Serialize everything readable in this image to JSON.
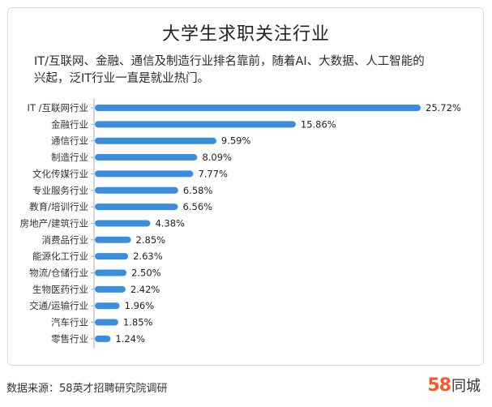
{
  "header": {
    "title": "大学生求职关注行业",
    "subtitle_line1": "IT/互联网、金融、通信及制造行业排名靠前，随着AI、大数据、人工智能的",
    "subtitle_line2": "兴起，泛IT行业一直是就业热门。"
  },
  "footer": {
    "source": "数据来源：58英才招聘研究院调研",
    "brand_number": "58",
    "brand_text": "同城"
  },
  "colors": {
    "bar": "#3b8ede",
    "axis": "#a9adb3",
    "brand": "#ff552e"
  },
  "chart_data": {
    "type": "bar",
    "orientation": "horizontal",
    "categories": [
      "IT /互联网行业",
      "金融行业",
      "通信行业",
      "制造行业",
      "文化传媒行业",
      "专业服务行业",
      "教育/培训行业",
      "房地产/建筑行业",
      "消费品行业",
      "能源化工行业",
      "物流/仓储行业",
      "生物医药行业",
      "交通/运输行业",
      "汽车行业",
      "零售行业"
    ],
    "values": [
      25.72,
      15.86,
      9.59,
      8.09,
      7.77,
      6.58,
      6.56,
      4.38,
      2.85,
      2.63,
      2.5,
      2.42,
      1.96,
      1.85,
      1.24
    ],
    "value_labels": [
      "25.72%",
      "15.86%",
      "9.59%",
      "8.09%",
      "7.77%",
      "6.58%",
      "6.56%",
      "4.38%",
      "2.85%",
      "2.63%",
      "2.50%",
      "2.42%",
      "1.96%",
      "1.85%",
      "1.24%"
    ],
    "unit": "%",
    "xlim": [
      0,
      25.72
    ],
    "grid": false,
    "legend": "none"
  }
}
